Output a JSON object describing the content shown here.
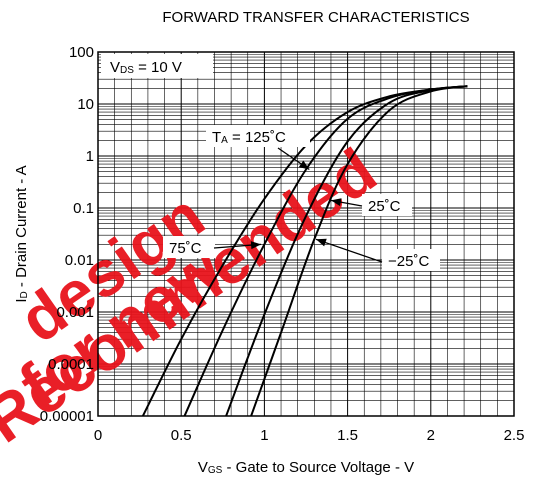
{
  "chart_data": {
    "type": "line",
    "title": "FORWARD TRANSFER CHARACTERISTICS",
    "xlabel": "VGS - Gate to Source Voltage - V",
    "ylabel": "ID - Drain Current - A",
    "xlim": [
      0,
      2.5
    ],
    "ylim": [
      1e-05,
      100
    ],
    "y_scale": "log",
    "grid": true,
    "x_ticks": [
      "0",
      "0.5",
      "1",
      "1.5",
      "2",
      "2.5"
    ],
    "y_ticks": [
      "0.00001",
      "0.0001",
      "0.001",
      "0.01",
      "0.1",
      "1",
      "10",
      "100"
    ],
    "condition_label": "VDS = 10 V",
    "series": [
      {
        "name": "TA = 125˚C",
        "x": [
          0.27,
          0.5,
          0.75,
          1.0,
          1.25,
          1.5,
          1.75,
          2.0,
          2.22
        ],
        "y": [
          1e-05,
          0.0003,
          0.008,
          0.15,
          1.6,
          7.0,
          14,
          19,
          22
        ]
      },
      {
        "name": "75˚C",
        "x": [
          0.52,
          0.75,
          1.0,
          1.25,
          1.5,
          1.75,
          2.0,
          2.22
        ],
        "y": [
          1e-05,
          0.00045,
          0.02,
          0.55,
          5.2,
          13.0,
          19,
          22
        ]
      },
      {
        "name": "25˚C",
        "x": [
          0.77,
          1.0,
          1.25,
          1.5,
          1.75,
          2.0,
          2.22
        ],
        "y": [
          1e-05,
          0.0009,
          0.07,
          1.9,
          10.5,
          18.5,
          22
        ]
      },
      {
        "name": "−25˚C",
        "x": [
          0.92,
          1.1,
          1.3,
          1.5,
          1.75,
          2.0,
          2.22
        ],
        "y": [
          1e-05,
          0.0004,
          0.025,
          0.7,
          7.5,
          17.5,
          22
        ]
      }
    ],
    "annotations": [
      {
        "text": "TA = 125˚C",
        "x": 1.25,
        "y": 1.25
      },
      {
        "text": "25˚C",
        "x": 1.39,
        "y": 0.12
      },
      {
        "text": "75˚C",
        "x": 1.0,
        "y": 0.025
      },
      {
        "text": "−25˚C",
        "x": 1.33,
        "y": 0.02
      }
    ]
  },
  "watermark": {
    "lines": [
      "Recommended",
      "for new",
      "design"
    ],
    "color": "#e8141c"
  }
}
